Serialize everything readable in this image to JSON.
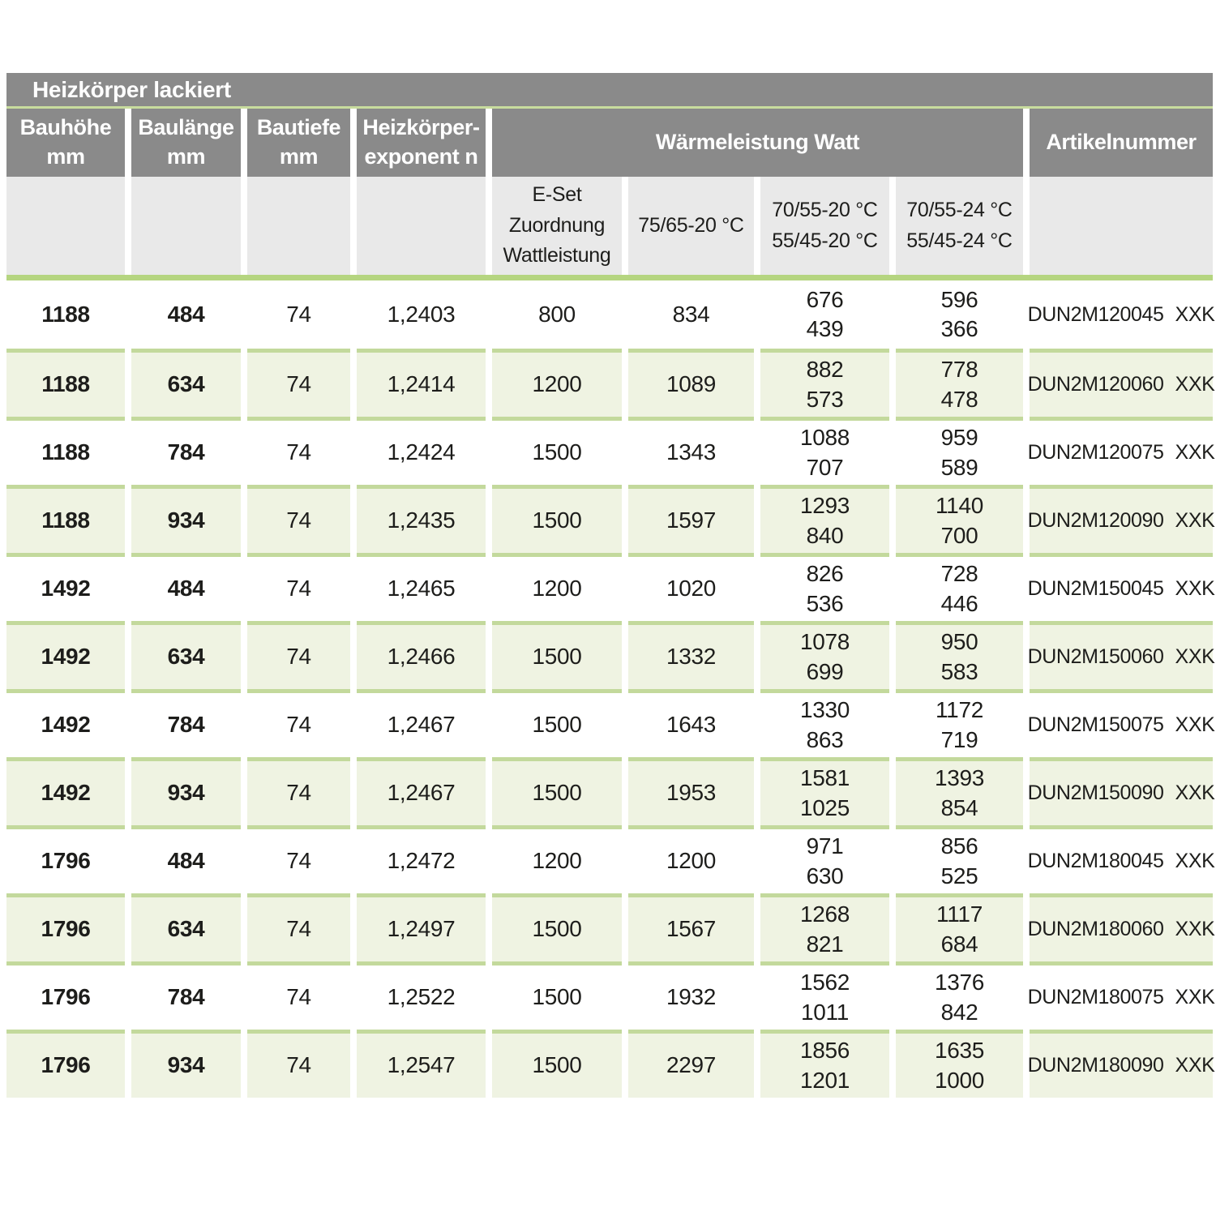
{
  "title": "Heizkörper lackiert",
  "header": {
    "cols": [
      {
        "line1": "Bauhöhe",
        "line2": "mm"
      },
      {
        "line1": "Baulänge",
        "line2": "mm"
      },
      {
        "line1": "Bautiefe",
        "line2": "mm"
      },
      {
        "line1": "Heizkörper-",
        "line2": "exponent n"
      }
    ],
    "watt_group": "Wärmeleistung Watt",
    "artikelnummer": "Artikelnummer"
  },
  "subheader": {
    "eset": [
      "E-Set",
      "Zuordnung",
      "Wattleistung"
    ],
    "t7565": "75/65-20 °C",
    "t7055_20": [
      "70/55-20 °C",
      "55/45-20 °C"
    ],
    "t7055_24": [
      "70/55-24 °C",
      "55/45-24 °C"
    ]
  },
  "colors": {
    "header_gray": "#8a8a8a",
    "subheader_gray": "#e9e9e9",
    "row_green": "#eff3e2",
    "line_green_light": "#c8dc9e",
    "line_green_sep": "#c3d99c",
    "line_green_strong": "#b5d580",
    "accent_green": "#8dc04a",
    "text": "#1d1d1b"
  },
  "rows": [
    {
      "bauhoehe": "1188",
      "baulaenge": "484",
      "bautiefe": "74",
      "exponent": "1,2403",
      "eset": "800",
      "w7565": "834",
      "w7055_20": [
        "676",
        "439"
      ],
      "w7055_24": [
        "596",
        "366"
      ],
      "artikel_prefix": "DUN2M120045",
      "artikel_suffix": "XXK"
    },
    {
      "bauhoehe": "1188",
      "baulaenge": "634",
      "bautiefe": "74",
      "exponent": "1,2414",
      "eset": "1200",
      "w7565": "1089",
      "w7055_20": [
        "882",
        "573"
      ],
      "w7055_24": [
        "778",
        "478"
      ],
      "artikel_prefix": "DUN2M120060",
      "artikel_suffix": "XXK"
    },
    {
      "bauhoehe": "1188",
      "baulaenge": "784",
      "bautiefe": "74",
      "exponent": "1,2424",
      "eset": "1500",
      "w7565": "1343",
      "w7055_20": [
        "1088",
        "707"
      ],
      "w7055_24": [
        "959",
        "589"
      ],
      "artikel_prefix": "DUN2M120075",
      "artikel_suffix": "XXK"
    },
    {
      "bauhoehe": "1188",
      "baulaenge": "934",
      "bautiefe": "74",
      "exponent": "1,2435",
      "eset": "1500",
      "w7565": "1597",
      "w7055_20": [
        "1293",
        "840"
      ],
      "w7055_24": [
        "1140",
        "700"
      ],
      "artikel_prefix": "DUN2M120090",
      "artikel_suffix": "XXK"
    },
    {
      "bauhoehe": "1492",
      "baulaenge": "484",
      "bautiefe": "74",
      "exponent": "1,2465",
      "eset": "1200",
      "w7565": "1020",
      "w7055_20": [
        "826",
        "536"
      ],
      "w7055_24": [
        "728",
        "446"
      ],
      "artikel_prefix": "DUN2M150045",
      "artikel_suffix": "XXK"
    },
    {
      "bauhoehe": "1492",
      "baulaenge": "634",
      "bautiefe": "74",
      "exponent": "1,2466",
      "eset": "1500",
      "w7565": "1332",
      "w7055_20": [
        "1078",
        "699"
      ],
      "w7055_24": [
        "950",
        "583"
      ],
      "artikel_prefix": "DUN2M150060",
      "artikel_suffix": "XXK"
    },
    {
      "bauhoehe": "1492",
      "baulaenge": "784",
      "bautiefe": "74",
      "exponent": "1,2467",
      "eset": "1500",
      "w7565": "1643",
      "w7055_20": [
        "1330",
        "863"
      ],
      "w7055_24": [
        "1172",
        "719"
      ],
      "artikel_prefix": "DUN2M150075",
      "artikel_suffix": "XXK"
    },
    {
      "bauhoehe": "1492",
      "baulaenge": "934",
      "bautiefe": "74",
      "exponent": "1,2467",
      "eset": "1500",
      "w7565": "1953",
      "w7055_20": [
        "1581",
        "1025"
      ],
      "w7055_24": [
        "1393",
        "854"
      ],
      "artikel_prefix": "DUN2M150090",
      "artikel_suffix": "XXK"
    },
    {
      "bauhoehe": "1796",
      "baulaenge": "484",
      "bautiefe": "74",
      "exponent": "1,2472",
      "eset": "1200",
      "w7565": "1200",
      "w7055_20": [
        "971",
        "630"
      ],
      "w7055_24": [
        "856",
        "525"
      ],
      "artikel_prefix": "DUN2M180045",
      "artikel_suffix": "XXK"
    },
    {
      "bauhoehe": "1796",
      "baulaenge": "634",
      "bautiefe": "74",
      "exponent": "1,2497",
      "eset": "1500",
      "w7565": "1567",
      "w7055_20": [
        "1268",
        "821"
      ],
      "w7055_24": [
        "1117",
        "684"
      ],
      "artikel_prefix": "DUN2M180060",
      "artikel_suffix": "XXK"
    },
    {
      "bauhoehe": "1796",
      "baulaenge": "784",
      "bautiefe": "74",
      "exponent": "1,2522",
      "eset": "1500",
      "w7565": "1932",
      "w7055_20": [
        "1562",
        "1011"
      ],
      "w7055_24": [
        "1376",
        "842"
      ],
      "artikel_prefix": "DUN2M180075",
      "artikel_suffix": "XXK"
    },
    {
      "bauhoehe": "1796",
      "baulaenge": "934",
      "bautiefe": "74",
      "exponent": "1,2547",
      "eset": "1500",
      "w7565": "2297",
      "w7055_20": [
        "1856",
        "1201"
      ],
      "w7055_24": [
        "1635",
        "1000"
      ],
      "artikel_prefix": "DUN2M180090",
      "artikel_suffix": "XXK"
    }
  ]
}
